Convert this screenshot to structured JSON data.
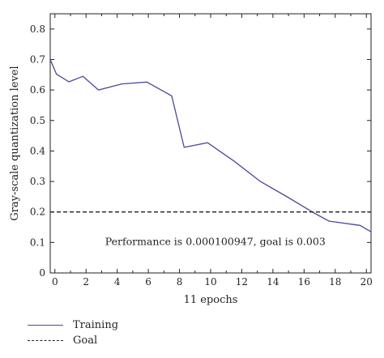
{
  "chart_data": {
    "type": "line",
    "xlabel": "11 epochs",
    "ylabel": "Gray-scale quantization level",
    "xlim": [
      -0.3,
      20.3
    ],
    "ylim": [
      0,
      0.85
    ],
    "xticks": [
      "0",
      "2",
      "4",
      "6",
      "8",
      "10",
      "12",
      "14",
      "16",
      "18",
      "20"
    ],
    "yticks": [
      "0",
      "0.1",
      "0.2",
      "0.3",
      "0.4",
      "0.5",
      "0.6",
      "0.7",
      "0.8"
    ],
    "annotation": "Performance is 0.000100947, goal is 0.003",
    "series": [
      {
        "name": "Training",
        "color": "#4a4a9a",
        "style": "solid",
        "x": [
          -0.3,
          0.1,
          0.9,
          1.8,
          2.8,
          4.3,
          5.9,
          7.5,
          8.3,
          9.8,
          11.5,
          13.2,
          15.0,
          16.6,
          17.6,
          19.6,
          20.3
        ],
        "y": [
          0.7,
          0.652,
          0.627,
          0.645,
          0.6,
          0.62,
          0.626,
          0.581,
          0.412,
          0.427,
          0.367,
          0.3,
          0.247,
          0.198,
          0.17,
          0.156,
          0.135
        ]
      },
      {
        "name": "Goal",
        "color": "#231f20",
        "style": "dashed",
        "x": [
          -0.3,
          20.3
        ],
        "y": [
          0.2,
          0.2
        ]
      }
    ],
    "legend": {
      "placement": "bottom-left",
      "entries": [
        "Training",
        "Goal"
      ]
    },
    "grid": false
  }
}
